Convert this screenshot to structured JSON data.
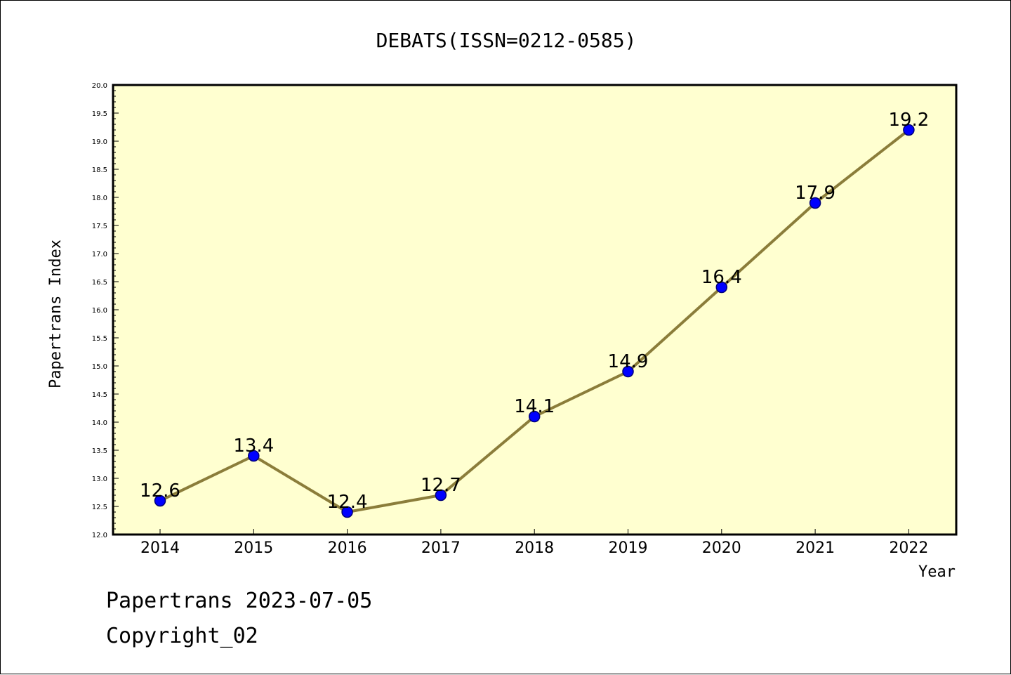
{
  "chart_data": {
    "type": "line",
    "title": "DEBATS(ISSN=0212-0585)",
    "xlabel": "Year",
    "ylabel": "Papertrans Index",
    "categories": [
      "2014",
      "2015",
      "2016",
      "2017",
      "2018",
      "2019",
      "2020",
      "2021",
      "2022"
    ],
    "series": [
      {
        "values": [
          12.6,
          13.4,
          12.4,
          12.7,
          14.1,
          14.9,
          16.4,
          17.9,
          19.2
        ],
        "labels": [
          "12.6",
          "13.4",
          "12.4",
          "12.7",
          "14.1",
          "14.9",
          "16.4",
          "17.9",
          "19.2"
        ]
      }
    ],
    "ylim": [
      12.0,
      20.0
    ],
    "yticks": [
      "12.0",
      "12.5",
      "13.0",
      "13.5",
      "14.0",
      "14.5",
      "15.0",
      "15.5",
      "16.0",
      "16.5",
      "17.0",
      "17.5",
      "18.0",
      "18.5",
      "19.0",
      "19.5",
      "20.0"
    ],
    "grid": false,
    "colors": {
      "plot_background": "#ffffd0",
      "line": "#8b7d3a",
      "marker_fill": "#0000ff",
      "marker_edge": "#00007a"
    }
  },
  "footer": {
    "line1": "Papertrans 2023-07-05",
    "line2": "Copyright_02"
  }
}
